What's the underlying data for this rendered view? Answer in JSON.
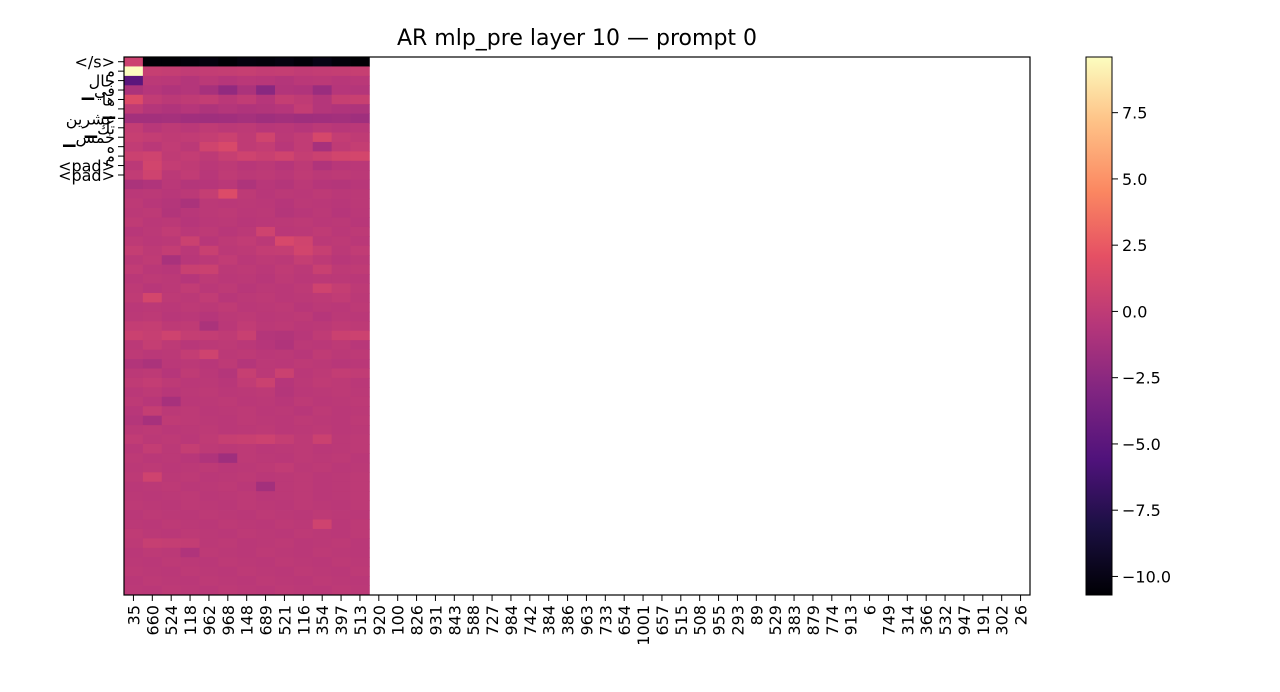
{
  "chart_data": {
    "type": "heatmap",
    "title": "AR mlp_pre layer 10 — prompt 0",
    "colormap": "magma",
    "colorbar": {
      "min": -10.7,
      "max": 9.6,
      "ticks": [
        -10.0,
        -7.5,
        -5.0,
        -2.5,
        0.0,
        2.5,
        5.0,
        7.5
      ],
      "tick_labels": [
        "−10.0",
        "−7.5",
        "−5.0",
        "−2.5",
        "0.0",
        "2.5",
        "5.0",
        "7.5"
      ]
    },
    "x_tick_labels": [
      "35",
      "660",
      "524",
      "118",
      "962",
      "968",
      "148",
      "689",
      "521",
      "116",
      "354",
      "397",
      "513",
      "920",
      "100",
      "826",
      "931",
      "843",
      "588",
      "727",
      "984",
      "742",
      "384",
      "386",
      "963",
      "733",
      "654",
      "1001",
      "657",
      "515",
      "508",
      "955",
      "293",
      "89",
      "529",
      "383",
      "879",
      "774",
      "913",
      "6",
      "749",
      "314",
      "366",
      "532",
      "947",
      "191",
      "302",
      "26"
    ],
    "y_tick_labels": [
      "</s>",
      "م",
      "حال",
      "▁في",
      "ها",
      "▁",
      "عشرين",
      "▁تك",
      "▁خمس",
      "ه",
      "م",
      "<pad>",
      "<pad>"
    ],
    "n_rows": 57,
    "n_cols": 48,
    "filled_cols": 13,
    "first_row": [
      0.7,
      -10.6,
      -10.6,
      -10.5,
      -10.3,
      -10.6,
      -10.3,
      -10.4,
      -10.2,
      -10.5,
      -10.0,
      -10.4,
      -10.6
    ],
    "row_values": [
      [
        0.7,
        -10.6,
        -10.6,
        -10.5,
        -10.3,
        -10.6,
        -10.3,
        -10.4,
        -10.2,
        -10.5,
        -10.0,
        -10.4,
        -10.6
      ],
      [
        9.6,
        0.4,
        0.3,
        0.1,
        0.2,
        0.3,
        0.4,
        0.2,
        0.3,
        0.1,
        0.2,
        0.3,
        0.4
      ],
      [
        -5.0,
        -0.2,
        -0.3,
        -0.6,
        -0.2,
        -0.5,
        -0.3,
        -0.4,
        -0.6,
        -0.3,
        -0.2,
        -0.4,
        -0.3
      ],
      [
        -1.0,
        -0.5,
        -0.8,
        -0.6,
        -1.2,
        -2.2,
        -1.0,
        -2.6,
        -0.7,
        -0.8,
        -1.8,
        -0.5,
        -0.6
      ],
      [
        1.6,
        0.1,
        -0.2,
        0.0,
        0.2,
        -0.3,
        0.1,
        -0.5,
        0.3,
        0.0,
        -0.6,
        0.4,
        0.5
      ],
      [
        0.0,
        -0.6,
        -0.8,
        -0.5,
        -0.9,
        -0.6,
        -0.8,
        -0.7,
        -0.5,
        0.2,
        -0.6,
        -0.8,
        -0.9
      ],
      [
        -1.4,
        -1.4,
        -1.3,
        -1.5,
        -1.6,
        -1.5,
        -1.3,
        -1.6,
        -1.4,
        -1.6,
        -1.5,
        -1.4,
        -1.6
      ],
      [
        0.2,
        -0.4,
        -0.1,
        -0.3,
        0.0,
        -0.2,
        -0.1,
        -0.4,
        -0.3,
        -0.5,
        -0.2,
        -0.4,
        -0.3
      ],
      [
        0.4,
        0.2,
        0.0,
        0.1,
        0.3,
        0.6,
        0.0,
        0.9,
        -0.2,
        0.1,
        1.2,
        0.2,
        0.0
      ],
      [
        0.1,
        -0.3,
        0.1,
        -0.2,
        0.9,
        1.4,
        0.0,
        0.2,
        -0.4,
        0.1,
        -1.2,
        0.0,
        0.3
      ],
      [
        0.6,
        0.8,
        0.0,
        0.2,
        -0.1,
        0.4,
        0.8,
        0.5,
        0.9,
        0.3,
        0.6,
        1.0,
        1.1
      ],
      [
        -0.2,
        1.0,
        0.2,
        0.0,
        -0.3,
        -0.1,
        -0.4,
        -0.2,
        -0.5,
        -0.1,
        -0.8,
        -0.4,
        -0.3
      ],
      [
        0.1,
        0.8,
        -0.2,
        0.1,
        -0.4,
        0.0,
        -0.2,
        -0.1,
        -0.3,
        0.0,
        -0.2,
        -0.1,
        -0.2
      ],
      [
        -1.0,
        -0.8,
        -0.3,
        -0.6,
        -0.5,
        -0.3,
        -0.9,
        -0.4,
        -0.6,
        -0.2,
        -0.5,
        -0.6,
        -0.4
      ],
      [
        -0.3,
        -0.2,
        -0.4,
        -0.2,
        0.3,
        1.6,
        -0.1,
        -0.4,
        -0.2,
        -0.3,
        -0.1,
        -0.3,
        -0.2
      ],
      [
        -0.1,
        -0.4,
        -0.6,
        -1.0,
        -0.2,
        -0.3,
        -0.2,
        -0.3,
        -0.5,
        -0.2,
        -0.3,
        -0.4,
        -0.2
      ],
      [
        -0.2,
        -0.1,
        -0.7,
        -0.4,
        -0.2,
        -0.1,
        -0.3,
        -0.2,
        -0.6,
        -0.4,
        -0.2,
        -0.5,
        -0.3
      ],
      [
        0.0,
        -0.3,
        -0.2,
        -0.5,
        -0.3,
        -0.2,
        -0.4,
        -0.3,
        -0.2,
        -0.1,
        -0.3,
        -0.2,
        -0.4
      ],
      [
        -0.4,
        -0.2,
        0.1,
        -0.3,
        -0.1,
        -0.4,
        -0.2,
        0.8,
        -0.3,
        -0.2,
        0.0,
        -0.3,
        -0.1
      ],
      [
        -0.1,
        -0.3,
        -0.2,
        0.6,
        -0.4,
        -0.1,
        0.1,
        -0.2,
        1.3,
        0.9,
        -0.2,
        -0.1,
        -0.3
      ],
      [
        0.3,
        -0.1,
        0.2,
        -0.3,
        0.5,
        -0.2,
        -0.1,
        0.2,
        0.3,
        1.0,
        0.4,
        -0.2,
        0.1
      ],
      [
        -0.2,
        0.0,
        -1.1,
        -0.4,
        -0.2,
        0.1,
        -0.3,
        -0.1,
        -0.2,
        0.3,
        -0.1,
        -0.4,
        -0.2
      ],
      [
        0.1,
        -0.3,
        -0.4,
        0.5,
        0.6,
        -0.2,
        -0.1,
        -0.3,
        0.0,
        -0.2,
        0.5,
        -0.1,
        0.0
      ],
      [
        -0.3,
        -0.1,
        -0.2,
        -0.5,
        -0.1,
        -0.3,
        -0.2,
        -0.4,
        -0.1,
        -0.3,
        -0.2,
        -0.2,
        -0.3
      ],
      [
        -0.1,
        -0.4,
        -0.2,
        0.1,
        -0.3,
        -0.1,
        -0.4,
        -0.2,
        -0.3,
        -0.1,
        0.8,
        0.3,
        -0.1
      ],
      [
        0.0,
        1.1,
        -0.1,
        -0.2,
        0.1,
        -0.4,
        -0.2,
        -0.1,
        -0.3,
        -0.2,
        -0.1,
        0.1,
        -0.2
      ],
      [
        -0.3,
        -0.2,
        -0.3,
        -0.1,
        -0.2,
        0.0,
        -0.3,
        -0.2,
        -0.1,
        -0.4,
        -0.2,
        -0.3,
        -0.1
      ],
      [
        -0.2,
        -0.1,
        -0.4,
        -0.3,
        -0.5,
        -0.2,
        -0.1,
        -0.3,
        -0.2,
        -0.1,
        -0.5,
        -0.2,
        -0.3
      ],
      [
        0.2,
        0.3,
        -0.1,
        0.0,
        -1.0,
        -0.3,
        0.1,
        -0.2,
        -0.1,
        -0.3,
        -0.2,
        0.0,
        -0.1
      ],
      [
        0.6,
        0.4,
        0.8,
        0.3,
        0.2,
        0.0,
        0.5,
        -0.6,
        -0.7,
        -0.4,
        0.0,
        0.6,
        0.7
      ],
      [
        -0.2,
        0.3,
        -0.1,
        -0.4,
        -0.2,
        -0.1,
        -0.3,
        -0.5,
        -0.8,
        -0.2,
        -0.3,
        -0.1,
        -0.4
      ],
      [
        -0.1,
        -0.3,
        -0.2,
        0.2,
        0.8,
        -0.2,
        -0.1,
        -0.3,
        -0.2,
        -0.4,
        0.0,
        -0.2,
        -0.1
      ],
      [
        -0.7,
        -1.0,
        -0.3,
        -0.2,
        -0.4,
        -0.1,
        -0.6,
        -0.2,
        -0.3,
        -0.1,
        -0.2,
        -0.4,
        -0.3
      ],
      [
        -0.2,
        -0.1,
        -0.5,
        0.0,
        -0.3,
        -0.6,
        0.4,
        -0.2,
        0.6,
        -0.3,
        -0.1,
        0.2,
        0.1
      ],
      [
        0.0,
        0.2,
        -0.1,
        -0.3,
        -0.2,
        -0.4,
        0.1,
        0.6,
        -0.5,
        -0.2,
        0.0,
        -0.1,
        -0.3
      ],
      [
        -0.3,
        -0.1,
        -0.4,
        -0.2,
        -0.1,
        -0.3,
        -0.2,
        -0.1,
        -0.6,
        -0.3,
        -0.2,
        -0.1,
        -0.2
      ],
      [
        -0.1,
        -0.4,
        -1.2,
        -0.3,
        -0.2,
        -0.1,
        -0.3,
        -0.2,
        -0.4,
        -0.1,
        -0.3,
        -0.2,
        -0.1
      ],
      [
        -0.4,
        0.3,
        -0.2,
        -0.1,
        -0.3,
        -0.2,
        -0.1,
        -0.3,
        -0.2,
        -0.4,
        -0.1,
        -0.3,
        -0.2
      ],
      [
        -0.6,
        -1.2,
        0.0,
        -0.1,
        -0.2,
        -0.3,
        -0.1,
        -0.2,
        -0.3,
        -0.1,
        -0.2,
        -0.3,
        -0.1
      ],
      [
        -0.2,
        -0.1,
        -0.3,
        -0.2,
        -0.1,
        -0.3,
        -0.2,
        -0.1,
        -0.3,
        -0.2,
        -0.1,
        -0.3,
        -0.2
      ],
      [
        0.1,
        -0.2,
        -0.1,
        -0.3,
        0.0,
        0.4,
        0.5,
        0.7,
        0.3,
        -0.1,
        0.6,
        -0.2,
        -0.1
      ],
      [
        -0.3,
        0.2,
        -0.2,
        0.3,
        -0.1,
        -0.2,
        -0.1,
        -0.3,
        -0.2,
        -0.1,
        -0.3,
        -0.2,
        -0.1
      ],
      [
        -0.1,
        -0.3,
        -0.2,
        -0.4,
        -0.8,
        -1.6,
        -0.1,
        -0.2,
        -0.3,
        -0.1,
        -0.2,
        -0.1,
        -0.3
      ],
      [
        -0.2,
        -0.1,
        -0.3,
        -0.2,
        -0.1,
        -0.3,
        -0.2,
        -0.1,
        0.1,
        -0.2,
        -0.1,
        -0.3,
        -0.2
      ],
      [
        -0.1,
        0.8,
        -0.2,
        -0.1,
        -0.3,
        -0.2,
        -0.1,
        -0.3,
        -0.2,
        -0.1,
        -0.3,
        -0.2,
        -0.1
      ],
      [
        -0.3,
        -0.2,
        -0.1,
        -0.3,
        -0.2,
        -0.1,
        -0.3,
        -1.4,
        -0.2,
        -0.1,
        -0.3,
        -0.2,
        -0.1
      ],
      [
        -0.2,
        -0.3,
        -0.2,
        -0.1,
        -0.3,
        -0.2,
        -0.1,
        -0.3,
        -0.2,
        -0.1,
        -0.3,
        -0.2,
        -0.1
      ],
      [
        -0.1,
        -0.2,
        -0.3,
        -0.1,
        -0.2,
        -0.3,
        -0.1,
        -0.2,
        -0.3,
        -0.1,
        -0.2,
        -0.3,
        -0.1
      ],
      [
        -0.3,
        -0.1,
        -0.2,
        -0.3,
        -0.1,
        -0.2,
        -0.3,
        -0.1,
        -0.2,
        -0.3,
        -0.1,
        -0.2,
        -0.3
      ],
      [
        -0.2,
        -0.3,
        -0.1,
        -0.2,
        -0.3,
        -0.1,
        -0.2,
        -0.3,
        -0.1,
        -0.2,
        0.8,
        -0.3,
        -0.1
      ],
      [
        0.0,
        -0.2,
        -0.3,
        -0.1,
        -0.2,
        -0.3,
        -0.1,
        -0.2,
        -0.3,
        -0.1,
        -0.2,
        -0.3,
        -0.1
      ],
      [
        -0.1,
        0.4,
        0.3,
        0.2,
        -0.2,
        -0.1,
        -0.3,
        -0.2,
        -0.1,
        -0.3,
        -0.2,
        -0.1,
        -0.3
      ],
      [
        -0.3,
        -0.1,
        -0.2,
        -0.8,
        -0.1,
        -0.2,
        -0.3,
        -0.1,
        -0.2,
        -0.3,
        -0.1,
        -0.2,
        -0.3
      ],
      [
        -0.2,
        -0.3,
        -0.1,
        -0.2,
        -0.3,
        -0.1,
        -0.2,
        -0.3,
        -0.1,
        -0.2,
        -0.3,
        -0.1,
        -0.2
      ],
      [
        -0.1,
        -0.2,
        -0.3,
        -0.1,
        -0.2,
        -0.3,
        -0.1,
        -0.2,
        -0.3,
        -0.1,
        -0.2,
        -0.3,
        -0.1
      ],
      [
        -0.3,
        -0.1,
        -0.2,
        -0.3,
        -0.1,
        -0.2,
        -0.3,
        -0.1,
        -0.2,
        -0.3,
        -0.1,
        -0.2,
        -0.3
      ],
      [
        -0.2,
        -0.3,
        -0.1,
        -0.2,
        -0.3,
        -0.1,
        -0.2,
        -0.3,
        -0.1,
        -0.2,
        -0.3,
        -0.1,
        -0.2
      ]
    ]
  }
}
